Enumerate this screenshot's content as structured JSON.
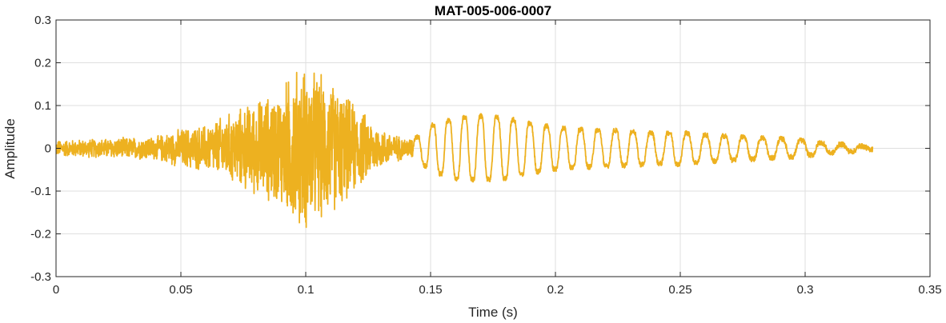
{
  "chart_data": {
    "type": "line",
    "title": "MAT-005-006-0007",
    "xlabel": "Time (s)",
    "ylabel": "Amplitude",
    "xlim": [
      0,
      0.35
    ],
    "ylim": [
      -0.3,
      0.3
    ],
    "x_ticks": [
      0,
      0.05,
      0.1,
      0.15,
      0.2,
      0.25,
      0.3,
      0.35
    ],
    "x_tick_labels": [
      "0",
      "0.05",
      "0.1",
      "0.15",
      "0.2",
      "0.25",
      "0.3",
      "0.35"
    ],
    "y_ticks": [
      -0.3,
      -0.2,
      -0.1,
      0,
      0.1,
      0.2,
      0.3
    ],
    "y_tick_labels": [
      "-0.3",
      "-0.2",
      "-0.1",
      "0",
      "0.1",
      "0.2",
      "0.3"
    ],
    "grid": true,
    "series": [
      {
        "color": "#EDB120",
        "x_range": [
          0,
          0.327
        ],
        "envelope": {
          "t": [
            0,
            0.02,
            0.04,
            0.05,
            0.06,
            0.07,
            0.08,
            0.09,
            0.095,
            0.1,
            0.11,
            0.12,
            0.13,
            0.14,
            0.145,
            0.15,
            0.16,
            0.17,
            0.18,
            0.19,
            0.2,
            0.21,
            0.22,
            0.23,
            0.24,
            0.25,
            0.26,
            0.27,
            0.28,
            0.29,
            0.3,
            0.31,
            0.32,
            0.327
          ],
          "amp": [
            0.02,
            0.025,
            0.03,
            0.05,
            0.06,
            0.09,
            0.12,
            0.15,
            0.2,
            0.21,
            0.17,
            0.11,
            0.05,
            0.025,
            0.03,
            0.06,
            0.08,
            0.085,
            0.08,
            0.065,
            0.055,
            0.05,
            0.048,
            0.045,
            0.04,
            0.042,
            0.035,
            0.032,
            0.028,
            0.025,
            0.02,
            0.012,
            0.008,
            0.002
          ]
        }
      }
    ]
  }
}
